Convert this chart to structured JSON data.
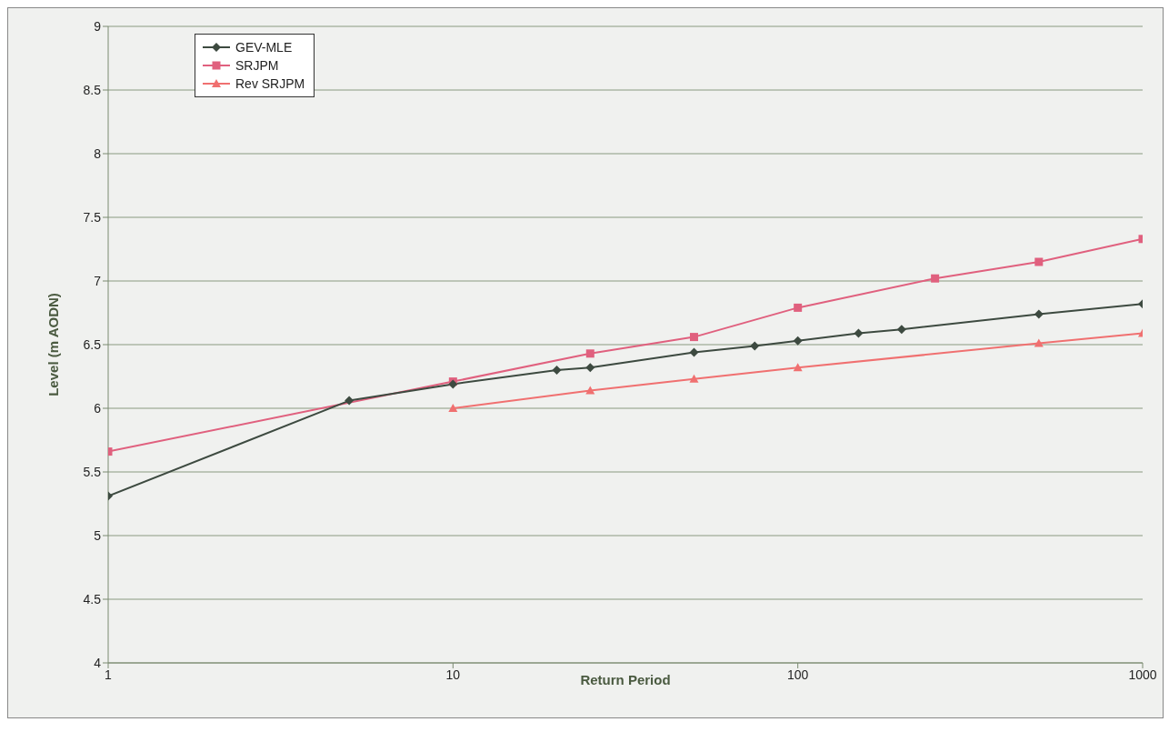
{
  "chart_data": {
    "type": "line",
    "xlabel": "Return Period",
    "ylabel": "Level (m AODN)",
    "log": "x",
    "xlim": [
      1,
      1000
    ],
    "xticks": [
      1,
      10,
      100,
      1000
    ],
    "ylim": [
      4,
      9
    ],
    "yticks": [
      4,
      4.5,
      5,
      5.5,
      6,
      6.5,
      7,
      7.5,
      8,
      8.5,
      9
    ],
    "grid": "y",
    "legend": "top left",
    "line_style": "solid",
    "series": [
      {
        "name": "GEV-MLE",
        "color": "#3d4a40",
        "marker": "diamond",
        "x": [
          1,
          5,
          10,
          20,
          25,
          50,
          75,
          100,
          150,
          200,
          500,
          1000
        ],
        "values": [
          5.31,
          6.06,
          6.19,
          6.3,
          6.32,
          6.44,
          6.49,
          6.53,
          6.59,
          6.62,
          6.74,
          6.82
        ]
      },
      {
        "name": "SRJPM",
        "color": "#e0607e",
        "marker": "square",
        "x": [
          1,
          10,
          25,
          50,
          100,
          250,
          500,
          1000
        ],
        "values": [
          5.66,
          6.21,
          6.43,
          6.56,
          6.79,
          7.02,
          7.15,
          7.33
        ]
      },
      {
        "name": "Rev SRJPM",
        "color": "#f07070",
        "marker": "triangle",
        "x": [
          10,
          25,
          50,
          100,
          500,
          1000
        ],
        "values": [
          6.0,
          6.14,
          6.23,
          6.32,
          6.51,
          6.59
        ]
      }
    ]
  }
}
